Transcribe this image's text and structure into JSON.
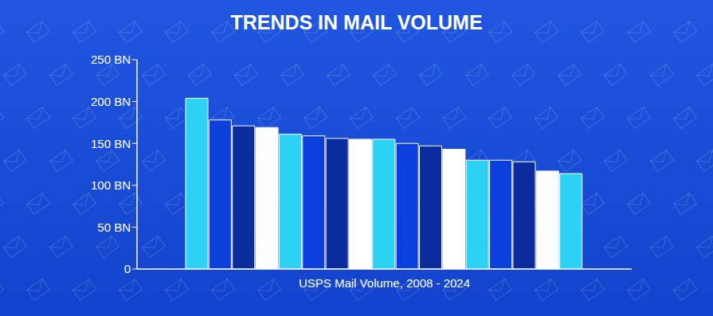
{
  "chart_data": {
    "type": "bar",
    "title": "TRENDS IN MAIL VOLUME",
    "x_label": "USPS Mail Volume, 2008 - 2024",
    "categories": [
      null,
      null,
      null,
      null,
      null,
      null,
      null,
      null,
      null,
      null,
      null,
      null,
      null,
      null,
      null,
      null,
      null
    ],
    "values": [
      204,
      178,
      171,
      169,
      161,
      159,
      156,
      155,
      155,
      150,
      147,
      143,
      130,
      130,
      128,
      117,
      114
    ],
    "colors": [
      "#2bd2f4",
      "#0b3fdc",
      "#0a2c9e",
      "#ffffff",
      "#2bd2f4",
      "#0b3fdc",
      "#0a2c9e",
      "#ffffff",
      "#2bd2f4",
      "#0b3fdc",
      "#0a2c9e",
      "#ffffff",
      "#2bd2f4",
      "#0b3fdc",
      "#0a2c9e",
      "#ffffff",
      "#2bd2f4"
    ],
    "ylim": [
      0,
      250
    ],
    "yticks": [
      0,
      {
        "value": 50,
        "label": "50 BN"
      },
      {
        "value": 100,
        "label": "100 BN"
      },
      {
        "value": 150,
        "label": "150 BN"
      },
      {
        "value": 200,
        "label": "200 BN"
      },
      {
        "value": 250,
        "label": "250 BN"
      }
    ],
    "grid": false,
    "tick_labels": "y"
  }
}
